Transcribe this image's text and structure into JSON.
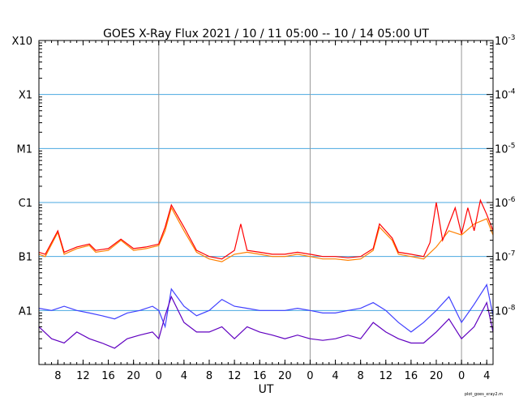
{
  "chart_data": {
    "type": "line",
    "title": "GOES X-Ray Flux   2021 / 10 / 11   05:00 -- 10 / 14   05:00   UT",
    "xlabel": "UT",
    "x_range_hours": [
      0,
      72
    ],
    "x_ticks": [
      {
        "h": 3,
        "label": "8"
      },
      {
        "h": 7,
        "label": "12"
      },
      {
        "h": 11,
        "label": "16"
      },
      {
        "h": 15,
        "label": "20"
      },
      {
        "h": 19,
        "label": "0"
      },
      {
        "h": 23,
        "label": "4"
      },
      {
        "h": 27,
        "label": "8"
      },
      {
        "h": 31,
        "label": "12"
      },
      {
        "h": 35,
        "label": "16"
      },
      {
        "h": 39,
        "label": "20"
      },
      {
        "h": 43,
        "label": "0"
      },
      {
        "h": 47,
        "label": "4"
      },
      {
        "h": 51,
        "label": "8"
      },
      {
        "h": 55,
        "label": "12"
      },
      {
        "h": 59,
        "label": "16"
      },
      {
        "h": 63,
        "label": "20"
      },
      {
        "h": 67,
        "label": "0"
      },
      {
        "h": 71,
        "label": "4"
      }
    ],
    "day_boundaries_hours": [
      19,
      43,
      67
    ],
    "y_scale": "log",
    "y_range": [
      1e-09,
      0.001
    ],
    "left_axis_labels": [
      {
        "label": "A1",
        "value": 1e-08
      },
      {
        "label": "B1",
        "value": 1e-07
      },
      {
        "label": "C1",
        "value": 1e-06
      },
      {
        "label": "M1",
        "value": 1e-05
      },
      {
        "label": "X1",
        "value": 0.0001
      },
      {
        "label": "X10",
        "value": 0.001
      }
    ],
    "right_axis_labels": [
      {
        "base": "10",
        "exp": "-3",
        "value": 0.001
      },
      {
        "base": "10",
        "exp": "-4",
        "value": 0.0001
      },
      {
        "base": "10",
        "exp": "-5",
        "value": 1e-05
      },
      {
        "base": "10",
        "exp": "-6",
        "value": 1e-06
      },
      {
        "base": "10",
        "exp": "-7",
        "value": 1e-07
      },
      {
        "base": "10",
        "exp": "-8",
        "value": 1e-08
      }
    ],
    "gridlines": [
      0.0001,
      1e-05,
      1e-06,
      1e-07,
      1e-08
    ],
    "series": [
      {
        "color": "#ff8000",
        "points": [
          [
            0,
            1.1e-07
          ],
          [
            1,
            1e-07
          ],
          [
            3,
            2.8e-07
          ],
          [
            4,
            1.1e-07
          ],
          [
            6,
            1.4e-07
          ],
          [
            8,
            1.6e-07
          ],
          [
            9,
            1.2e-07
          ],
          [
            11,
            1.3e-07
          ],
          [
            13,
            2e-07
          ],
          [
            15,
            1.3e-07
          ],
          [
            17,
            1.4e-07
          ],
          [
            19,
            1.6e-07
          ],
          [
            20,
            3e-07
          ],
          [
            21,
            8e-07
          ],
          [
            23,
            3e-07
          ],
          [
            25,
            1.2e-07
          ],
          [
            27,
            9e-08
          ],
          [
            29,
            8e-08
          ],
          [
            31,
            1.1e-07
          ],
          [
            33,
            1.2e-07
          ],
          [
            35,
            1.1e-07
          ],
          [
            37,
            1e-07
          ],
          [
            39,
            1e-07
          ],
          [
            41,
            1.1e-07
          ],
          [
            43,
            1e-07
          ],
          [
            45,
            9e-08
          ],
          [
            47,
            9e-08
          ],
          [
            49,
            8.5e-08
          ],
          [
            51,
            9e-08
          ],
          [
            53,
            1.3e-07
          ],
          [
            54,
            3.5e-07
          ],
          [
            56,
            2e-07
          ],
          [
            57,
            1.1e-07
          ],
          [
            59,
            1e-07
          ],
          [
            61,
            9e-08
          ],
          [
            63,
            1.5e-07
          ],
          [
            65,
            3e-07
          ],
          [
            67,
            2.5e-07
          ],
          [
            69,
            4e-07
          ],
          [
            71,
            5e-07
          ],
          [
            72,
            2.5e-07
          ]
        ]
      },
      {
        "color": "#ff0000",
        "points": [
          [
            0,
            1.2e-07
          ],
          [
            1,
            1.1e-07
          ],
          [
            3,
            3e-07
          ],
          [
            4,
            1.2e-07
          ],
          [
            6,
            1.5e-07
          ],
          [
            8,
            1.7e-07
          ],
          [
            9,
            1.3e-07
          ],
          [
            11,
            1.4e-07
          ],
          [
            13,
            2.1e-07
          ],
          [
            15,
            1.4e-07
          ],
          [
            17,
            1.5e-07
          ],
          [
            19,
            1.7e-07
          ],
          [
            20,
            3.5e-07
          ],
          [
            21,
            9e-07
          ],
          [
            23,
            3.5e-07
          ],
          [
            25,
            1.3e-07
          ],
          [
            27,
            1e-07
          ],
          [
            29,
            9e-08
          ],
          [
            31,
            1.3e-07
          ],
          [
            32,
            4e-07
          ],
          [
            33,
            1.3e-07
          ],
          [
            35,
            1.2e-07
          ],
          [
            37,
            1.1e-07
          ],
          [
            39,
            1.1e-07
          ],
          [
            41,
            1.2e-07
          ],
          [
            43,
            1.1e-07
          ],
          [
            45,
            1e-07
          ],
          [
            47,
            1e-07
          ],
          [
            49,
            9.5e-08
          ],
          [
            51,
            1e-07
          ],
          [
            53,
            1.4e-07
          ],
          [
            54,
            4e-07
          ],
          [
            56,
            2.2e-07
          ],
          [
            57,
            1.2e-07
          ],
          [
            59,
            1.1e-07
          ],
          [
            61,
            1e-07
          ],
          [
            62,
            1.8e-07
          ],
          [
            63,
            1e-06
          ],
          [
            64,
            2e-07
          ],
          [
            65,
            4e-07
          ],
          [
            66,
            8e-07
          ],
          [
            67,
            2.6e-07
          ],
          [
            68,
            8e-07
          ],
          [
            69,
            3e-07
          ],
          [
            70,
            1.1e-06
          ],
          [
            71,
            6e-07
          ],
          [
            72,
            3e-07
          ]
        ]
      },
      {
        "color": "#4040ff",
        "points": [
          [
            0,
            1.1e-08
          ],
          [
            2,
            1e-08
          ],
          [
            4,
            1.2e-08
          ],
          [
            6,
            1e-08
          ],
          [
            8,
            9e-09
          ],
          [
            10,
            8e-09
          ],
          [
            12,
            7e-09
          ],
          [
            14,
            9e-09
          ],
          [
            16,
            1e-08
          ],
          [
            18,
            1.2e-08
          ],
          [
            19,
            1e-08
          ],
          [
            20,
            5e-09
          ],
          [
            21,
            2.5e-08
          ],
          [
            23,
            1.2e-08
          ],
          [
            25,
            8e-09
          ],
          [
            27,
            1e-08
          ],
          [
            29,
            1.6e-08
          ],
          [
            31,
            1.2e-08
          ],
          [
            33,
            1.1e-08
          ],
          [
            35,
            1e-08
          ],
          [
            37,
            1e-08
          ],
          [
            39,
            1e-08
          ],
          [
            41,
            1.1e-08
          ],
          [
            43,
            1e-08
          ],
          [
            45,
            9e-09
          ],
          [
            47,
            9e-09
          ],
          [
            49,
            1e-08
          ],
          [
            51,
            1.1e-08
          ],
          [
            53,
            1.4e-08
          ],
          [
            55,
            1e-08
          ],
          [
            57,
            6e-09
          ],
          [
            59,
            4e-09
          ],
          [
            61,
            6e-09
          ],
          [
            63,
            1e-08
          ],
          [
            65,
            1.8e-08
          ],
          [
            67,
            6e-09
          ],
          [
            69,
            1.3e-08
          ],
          [
            71,
            3e-08
          ],
          [
            72,
            8e-09
          ]
        ]
      },
      {
        "color": "#6000c0",
        "points": [
          [
            0,
            5e-09
          ],
          [
            2,
            3e-09
          ],
          [
            4,
            2.5e-09
          ],
          [
            6,
            4e-09
          ],
          [
            8,
            3e-09
          ],
          [
            10,
            2.5e-09
          ],
          [
            12,
            2e-09
          ],
          [
            14,
            3e-09
          ],
          [
            16,
            3.5e-09
          ],
          [
            18,
            4e-09
          ],
          [
            19,
            3e-09
          ],
          [
            20,
            8e-09
          ],
          [
            21,
            1.8e-08
          ],
          [
            23,
            6e-09
          ],
          [
            25,
            4e-09
          ],
          [
            27,
            4e-09
          ],
          [
            29,
            5e-09
          ],
          [
            31,
            3e-09
          ],
          [
            33,
            5e-09
          ],
          [
            35,
            4e-09
          ],
          [
            37,
            3.5e-09
          ],
          [
            39,
            3e-09
          ],
          [
            41,
            3.5e-09
          ],
          [
            43,
            3e-09
          ],
          [
            45,
            2.8e-09
          ],
          [
            47,
            3e-09
          ],
          [
            49,
            3.5e-09
          ],
          [
            51,
            3e-09
          ],
          [
            53,
            6e-09
          ],
          [
            55,
            4e-09
          ],
          [
            57,
            3e-09
          ],
          [
            59,
            2.5e-09
          ],
          [
            61,
            2.5e-09
          ],
          [
            63,
            4e-09
          ],
          [
            65,
            7e-09
          ],
          [
            67,
            3e-09
          ],
          [
            69,
            5e-09
          ],
          [
            71,
            1.4e-08
          ],
          [
            72,
            4e-09
          ]
        ]
      }
    ],
    "grid": true
  },
  "footer_note": "plot_goes_xray2.m",
  "colors": {
    "grid": "#4aa8e0",
    "day_line": "#999999",
    "axis": "#000000"
  }
}
